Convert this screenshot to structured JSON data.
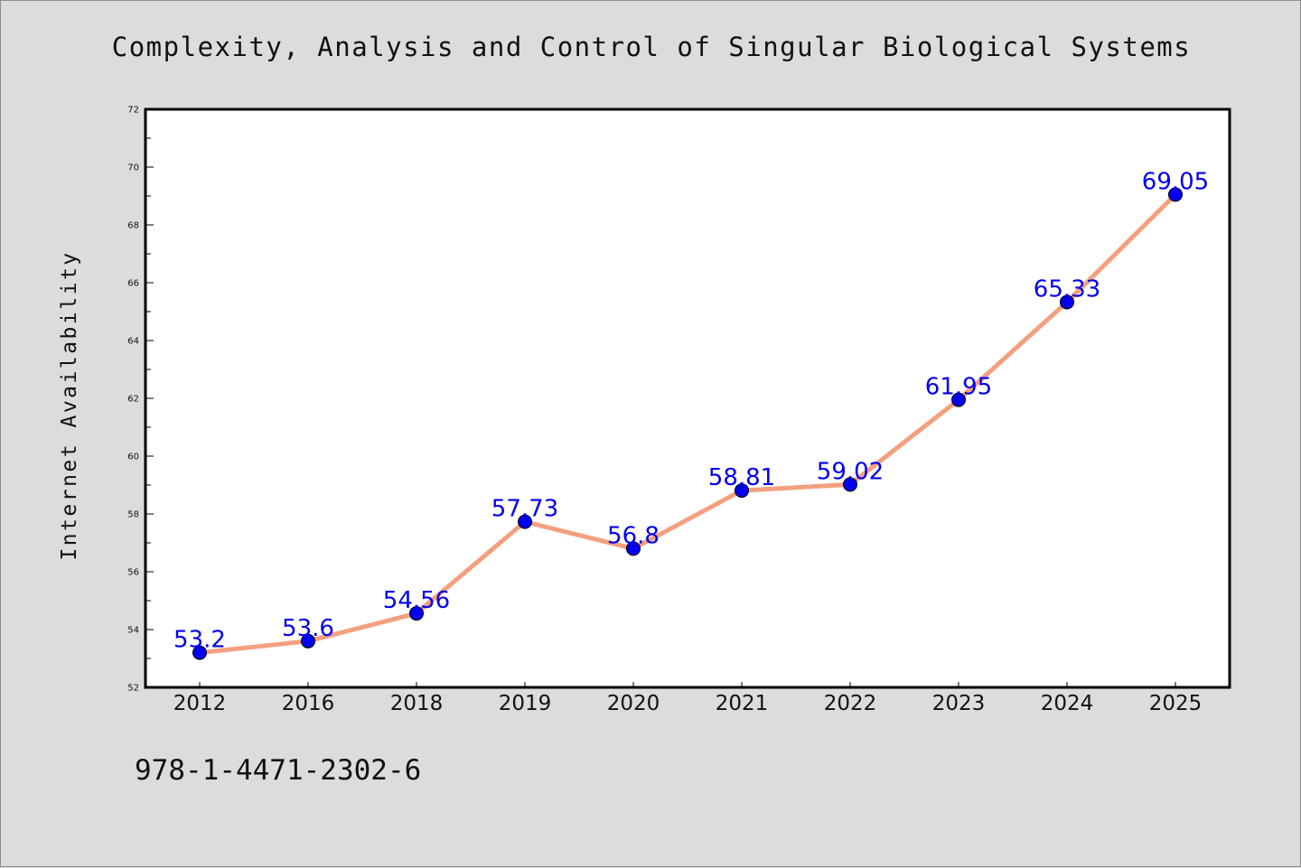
{
  "figure": {
    "title": "Complexity, Analysis and Control of Singular Biological Systems",
    "footer_text": "978-1-4471-2302-6",
    "background_color": "#dcdcdc",
    "plot_background_color": "#ffffff"
  },
  "chart_data": {
    "type": "line",
    "title": "Complexity, Analysis and Control of Singular Biological Systems",
    "xlabel": "",
    "ylabel": "Internet Availability",
    "categories": [
      "2012",
      "2016",
      "2018",
      "2019",
      "2020",
      "2021",
      "2022",
      "2023",
      "2024",
      "2025"
    ],
    "series": [
      {
        "values": [
          53.2,
          53.6,
          54.56,
          57.73,
          56.8,
          58.81,
          59.02,
          61.95,
          65.33,
          69.05
        ],
        "line_color": "#f4a07f",
        "marker_color": "#0000ee"
      }
    ],
    "data_labels": [
      "53.2",
      "53.6",
      "54.56",
      "57.73",
      "56.8",
      "58.81",
      "59.02",
      "61.95",
      "65.33",
      "69.05"
    ],
    "data_label_color": "#0000ee",
    "ylim": [
      52,
      72
    ],
    "yticks": [
      "52",
      "54",
      "56",
      "58",
      "60",
      "62",
      "64",
      "66",
      "68",
      "70",
      "72"
    ],
    "grid": false,
    "legend": "none"
  }
}
